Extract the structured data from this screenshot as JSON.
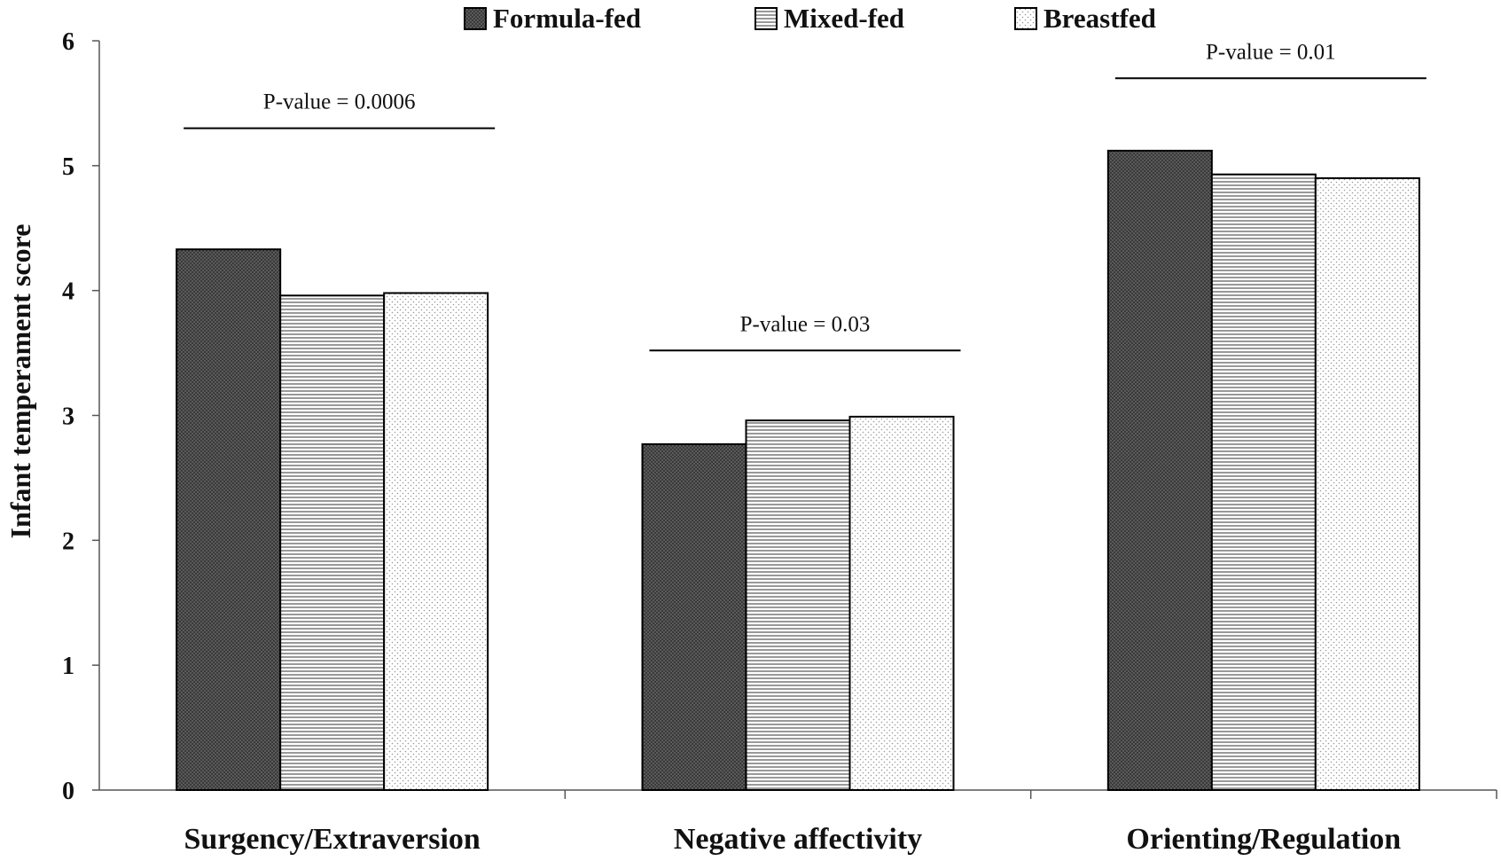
{
  "chart_data": {
    "type": "bar",
    "title": "",
    "ylabel": "Infant temperament score",
    "xlabel": "",
    "ylim": [
      0,
      6
    ],
    "yticks": [
      0,
      1,
      2,
      3,
      4,
      5,
      6
    ],
    "grid": false,
    "legend_position": "top",
    "categories": [
      "Surgency/Extraversion",
      "Negative affectivity",
      "Orienting/Regulation"
    ],
    "series": [
      {
        "name": "Formula-fed",
        "values": [
          4.33,
          2.77,
          5.12
        ],
        "pattern": "dark-dotted",
        "color": "#3a3a3a"
      },
      {
        "name": "Mixed-fed",
        "values": [
          3.96,
          2.96,
          4.93
        ],
        "pattern": "horizontal-lines",
        "color": "#ffffff"
      },
      {
        "name": "Breastfed",
        "values": [
          3.98,
          2.99,
          4.9
        ],
        "pattern": "light-dotted",
        "color": "#ffffff"
      }
    ],
    "annotations": [
      {
        "text": "P-value = 0.0006",
        "category": 0,
        "y": 5.3
      },
      {
        "text": "P-value = 0.03",
        "category": 1,
        "y": 3.52
      },
      {
        "text": "P-value = 0.01",
        "category": 2,
        "y": 5.7
      }
    ]
  }
}
